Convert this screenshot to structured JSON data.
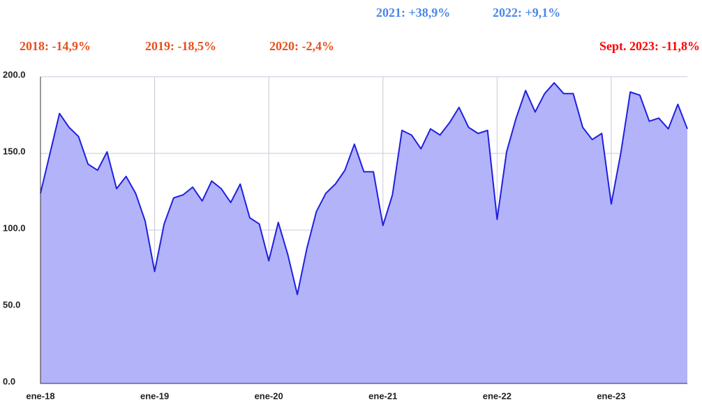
{
  "chart_data": {
    "type": "area",
    "annotations": [
      {
        "text": "2021: +38,9%",
        "color": "#4a86e8"
      },
      {
        "text": "2022: +9,1%",
        "color": "#4a86e8"
      },
      {
        "text": "2018: -14,9%",
        "color": "#e8501e"
      },
      {
        "text": "2019: -18,5%",
        "color": "#e8501e"
      },
      {
        "text": "2020: -2,4%",
        "color": "#e8501e"
      },
      {
        "text": "Sept. 2023: -11,8%",
        "color": "#ff0000"
      }
    ],
    "categories": [
      "ene-18",
      null,
      null,
      null,
      null,
      null,
      null,
      null,
      null,
      null,
      null,
      null,
      "ene-19",
      null,
      null,
      null,
      null,
      null,
      null,
      null,
      null,
      null,
      null,
      null,
      "ene-20",
      null,
      null,
      null,
      null,
      null,
      null,
      null,
      null,
      null,
      null,
      null,
      "ene-21",
      null,
      null,
      null,
      null,
      null,
      null,
      null,
      null,
      null,
      null,
      null,
      "ene-22",
      null,
      null,
      null,
      null,
      null,
      null,
      null,
      null,
      null,
      null,
      null,
      "ene-23",
      null,
      null,
      null,
      null,
      null,
      null,
      null,
      null
    ],
    "series": [
      {
        "color": "#1f1fe0",
        "fill": "#b3b3fa",
        "values": [
          124,
          150,
          176,
          167,
          161,
          143,
          139,
          151,
          127,
          135,
          124,
          106,
          73,
          104,
          121,
          123,
          128,
          119,
          132,
          127,
          118,
          130,
          108,
          104,
          80,
          105,
          84,
          58,
          88,
          112,
          124,
          130,
          139,
          156,
          138,
          138,
          103,
          123,
          165,
          162,
          153,
          166,
          162,
          170,
          180,
          167,
          163,
          165,
          107,
          151,
          173,
          191,
          177,
          189,
          196,
          189,
          189,
          167,
          159,
          163,
          117,
          150,
          190,
          188,
          171,
          173,
          166,
          182,
          166
        ]
      }
    ],
    "ylim": [
      0,
      200
    ],
    "yticks": [
      {
        "value": 0,
        "label": "0.0"
      },
      {
        "value": 50,
        "label": "50.0"
      },
      {
        "value": 100,
        "label": "100.0"
      },
      {
        "value": 150,
        "label": "150.0"
      },
      {
        "value": 200,
        "label": "200.0"
      }
    ],
    "grid": true
  }
}
